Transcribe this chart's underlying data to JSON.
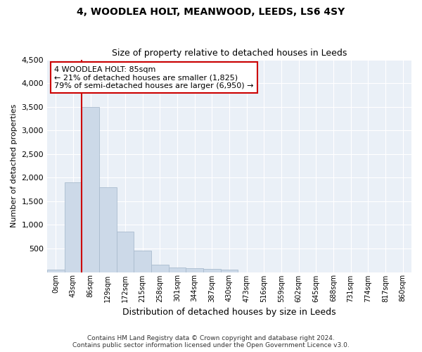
{
  "title": "4, WOODLEA HOLT, MEANWOOD, LEEDS, LS6 4SY",
  "subtitle": "Size of property relative to detached houses in Leeds",
  "xlabel": "Distribution of detached houses by size in Leeds",
  "ylabel": "Number of detached properties",
  "bar_color": "#ccd9e8",
  "bar_edge_color": "#aabcce",
  "background_color": "#eaf0f7",
  "grid_color": "#ffffff",
  "categories": [
    "0sqm",
    "43sqm",
    "86sqm",
    "129sqm",
    "172sqm",
    "215sqm",
    "258sqm",
    "301sqm",
    "344sqm",
    "387sqm",
    "430sqm",
    "473sqm",
    "516sqm",
    "559sqm",
    "602sqm",
    "645sqm",
    "688sqm",
    "731sqm",
    "774sqm",
    "817sqm",
    "860sqm"
  ],
  "values": [
    50,
    1900,
    3500,
    1800,
    850,
    450,
    155,
    100,
    75,
    60,
    50,
    0,
    0,
    0,
    0,
    0,
    0,
    0,
    0,
    0,
    0
  ],
  "ylim": [
    0,
    4500
  ],
  "yticks": [
    0,
    500,
    1000,
    1500,
    2000,
    2500,
    3000,
    3500,
    4000,
    4500
  ],
  "red_line_x": 1.5,
  "annotation_text": "4 WOODLEA HOLT: 85sqm\n← 21% of detached houses are smaller (1,825)\n79% of semi-detached houses are larger (6,950) →",
  "annotation_box_color": "white",
  "annotation_box_edge_color": "#cc0000",
  "footer_line1": "Contains HM Land Registry data © Crown copyright and database right 2024.",
  "footer_line2": "Contains public sector information licensed under the Open Government Licence v3.0."
}
